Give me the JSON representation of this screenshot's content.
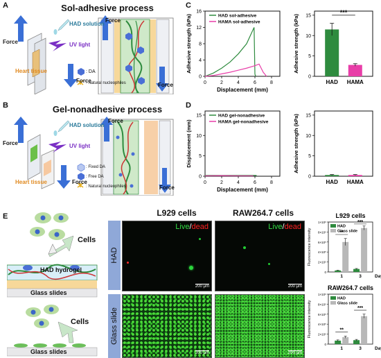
{
  "panels": {
    "A": {
      "letter": "A",
      "title": "Sol-adhesive process",
      "force": "Force",
      "solution": "HAD solution",
      "uv": "UV light",
      "tissue": "Heart tissue",
      "legend_da": ": DA",
      "legend_nuc": ": Natural nucleophiles"
    },
    "B": {
      "letter": "B",
      "title": "Gel-nonadhesive process",
      "force": "Force",
      "solution": "HAD solution",
      "uv": "UV light",
      "tissue": "Heart tissue",
      "legend_fixed": ": Fixed DA",
      "legend_free": ": Free DA",
      "legend_nuc": ": Natural nucleophiles"
    },
    "C": {
      "letter": "C"
    },
    "D": {
      "letter": "D"
    },
    "E": {
      "letter": "E",
      "cells_top": "Cells",
      "hydrogel": "HAD hydrogel",
      "glass_top": "Glass slides",
      "cells_bottom": "Cells",
      "glass_bottom": "Glass slides",
      "col1": "L929 cells",
      "col2": "RAW264.7 cells",
      "row1": "HAD",
      "row2": "Glass slide",
      "live": "Live",
      "slash": "/",
      "dead": "dead",
      "scale": "200 μm"
    }
  },
  "colors": {
    "had": "#2e8b3e",
    "hama": "#e83ea8",
    "glass": "#b8b8b8",
    "live": "#33dd44",
    "dead": "#ff2222"
  },
  "chart_data": [
    {
      "id": "C-line",
      "type": "line",
      "xlabel": "Displacement (mm)",
      "ylabel": "Adhesive strength (kPa)",
      "xticks": [
        "0",
        "2",
        "4",
        "6",
        "8"
      ],
      "yticks": [
        "0",
        "4",
        "8",
        "12",
        "16"
      ],
      "xlim": [
        0,
        9
      ],
      "ylim": [
        0,
        16
      ],
      "series": [
        {
          "name": "HAD sol-adhesive",
          "color": "#2e8b3e",
          "x": [
            0,
            1,
            2,
            3,
            4,
            5,
            5.9,
            6.0,
            6.1
          ],
          "y": [
            0,
            0.8,
            2,
            3.5,
            5.5,
            8,
            12,
            0.5,
            0
          ]
        },
        {
          "name": "HAMA sol-adhesive",
          "color": "#e83ea8",
          "x": [
            0,
            1,
            2,
            3,
            4,
            5,
            6,
            6.5,
            7,
            7.4
          ],
          "y": [
            0,
            0.2,
            0.6,
            1,
            1.5,
            2,
            2.6,
            3,
            1,
            0
          ]
        }
      ]
    },
    {
      "id": "C-bar",
      "type": "bar",
      "ylabel": "Adhesive strength (kPa)",
      "categories": [
        "HAD",
        "HAMA"
      ],
      "values": [
        11.5,
        2.8
      ],
      "errors": [
        1.5,
        0.3
      ],
      "yticks": [
        "0",
        "5",
        "10",
        "15"
      ],
      "ylim": [
        0,
        16
      ],
      "significance": "***",
      "colors": [
        "#2e8b3e",
        "#e83ea8"
      ]
    },
    {
      "id": "D-line",
      "type": "line",
      "xlabel": "Displacement (mm)",
      "ylabel": "Displacement (mm)",
      "xticks": [
        "0",
        "2",
        "4",
        "6",
        "8"
      ],
      "yticks": [
        "0",
        "5",
        "10",
        "15"
      ],
      "xlim": [
        0,
        9
      ],
      "ylim": [
        0,
        16
      ],
      "series": [
        {
          "name": "HAD gel-nonadhesive",
          "color": "#2e8b3e",
          "x": [
            0,
            2,
            4,
            6.2
          ],
          "y": [
            0.2,
            0.2,
            0.2,
            0.2
          ]
        },
        {
          "name": "HAMA gel-nonadhesive",
          "color": "#e83ea8",
          "x": [
            0,
            2,
            4,
            5.8
          ],
          "y": [
            0.1,
            0.15,
            0.1,
            0.1
          ]
        }
      ]
    },
    {
      "id": "D-bar",
      "type": "bar",
      "ylabel": "Adhesive strength (kPa)",
      "categories": [
        "HAD",
        "HAMA"
      ],
      "values": [
        0.3,
        0.3
      ],
      "errors": [
        0.1,
        0.1
      ],
      "yticks": [
        "0",
        "5",
        "10",
        "15"
      ],
      "ylim": [
        0,
        16
      ],
      "colors": [
        "#2e8b3e",
        "#e83ea8"
      ]
    },
    {
      "id": "E-L929",
      "type": "bar",
      "title": "L929 cells",
      "ylabel": "Fluorescence intensity",
      "categories": [
        "1",
        "3"
      ],
      "xsuffix": "Day",
      "series": [
        {
          "name": "HAD",
          "color": "#2e8b3e",
          "values": [
            0.3,
            0.6
          ],
          "errors": [
            0.05,
            0.1
          ]
        },
        {
          "name": "Glass slide",
          "color": "#b8b8b8",
          "values": [
            6,
            8.8
          ],
          "errors": [
            0.7,
            0.4
          ]
        }
      ],
      "yticks": [
        "0",
        "2×10⁵",
        "4×10⁵",
        "6×10⁵",
        "8×10⁵",
        "1×10⁶"
      ],
      "ylim": [
        0,
        10
      ],
      "significance": [
        "**",
        "***"
      ]
    },
    {
      "id": "E-RAW",
      "type": "bar",
      "title": "RAW264.7 cells",
      "ylabel": "Fluorescence intensity",
      "categories": [
        "1",
        "3"
      ],
      "xsuffix": "Day",
      "series": [
        {
          "name": "HAD",
          "color": "#2e8b3e",
          "values": [
            0.7,
            0.8
          ],
          "errors": [
            0.15,
            0.15
          ]
        },
        {
          "name": "Glass slide",
          "color": "#b8b8b8",
          "values": [
            1.4,
            5.6
          ],
          "errors": [
            0.2,
            0.4
          ]
        }
      ],
      "yticks": [
        "0",
        "2×10⁵",
        "4×10⁵",
        "6×10⁵",
        "8×10⁵",
        "1×10⁶"
      ],
      "ylim": [
        0,
        10
      ],
      "significance": [
        "**",
        "***"
      ]
    }
  ]
}
